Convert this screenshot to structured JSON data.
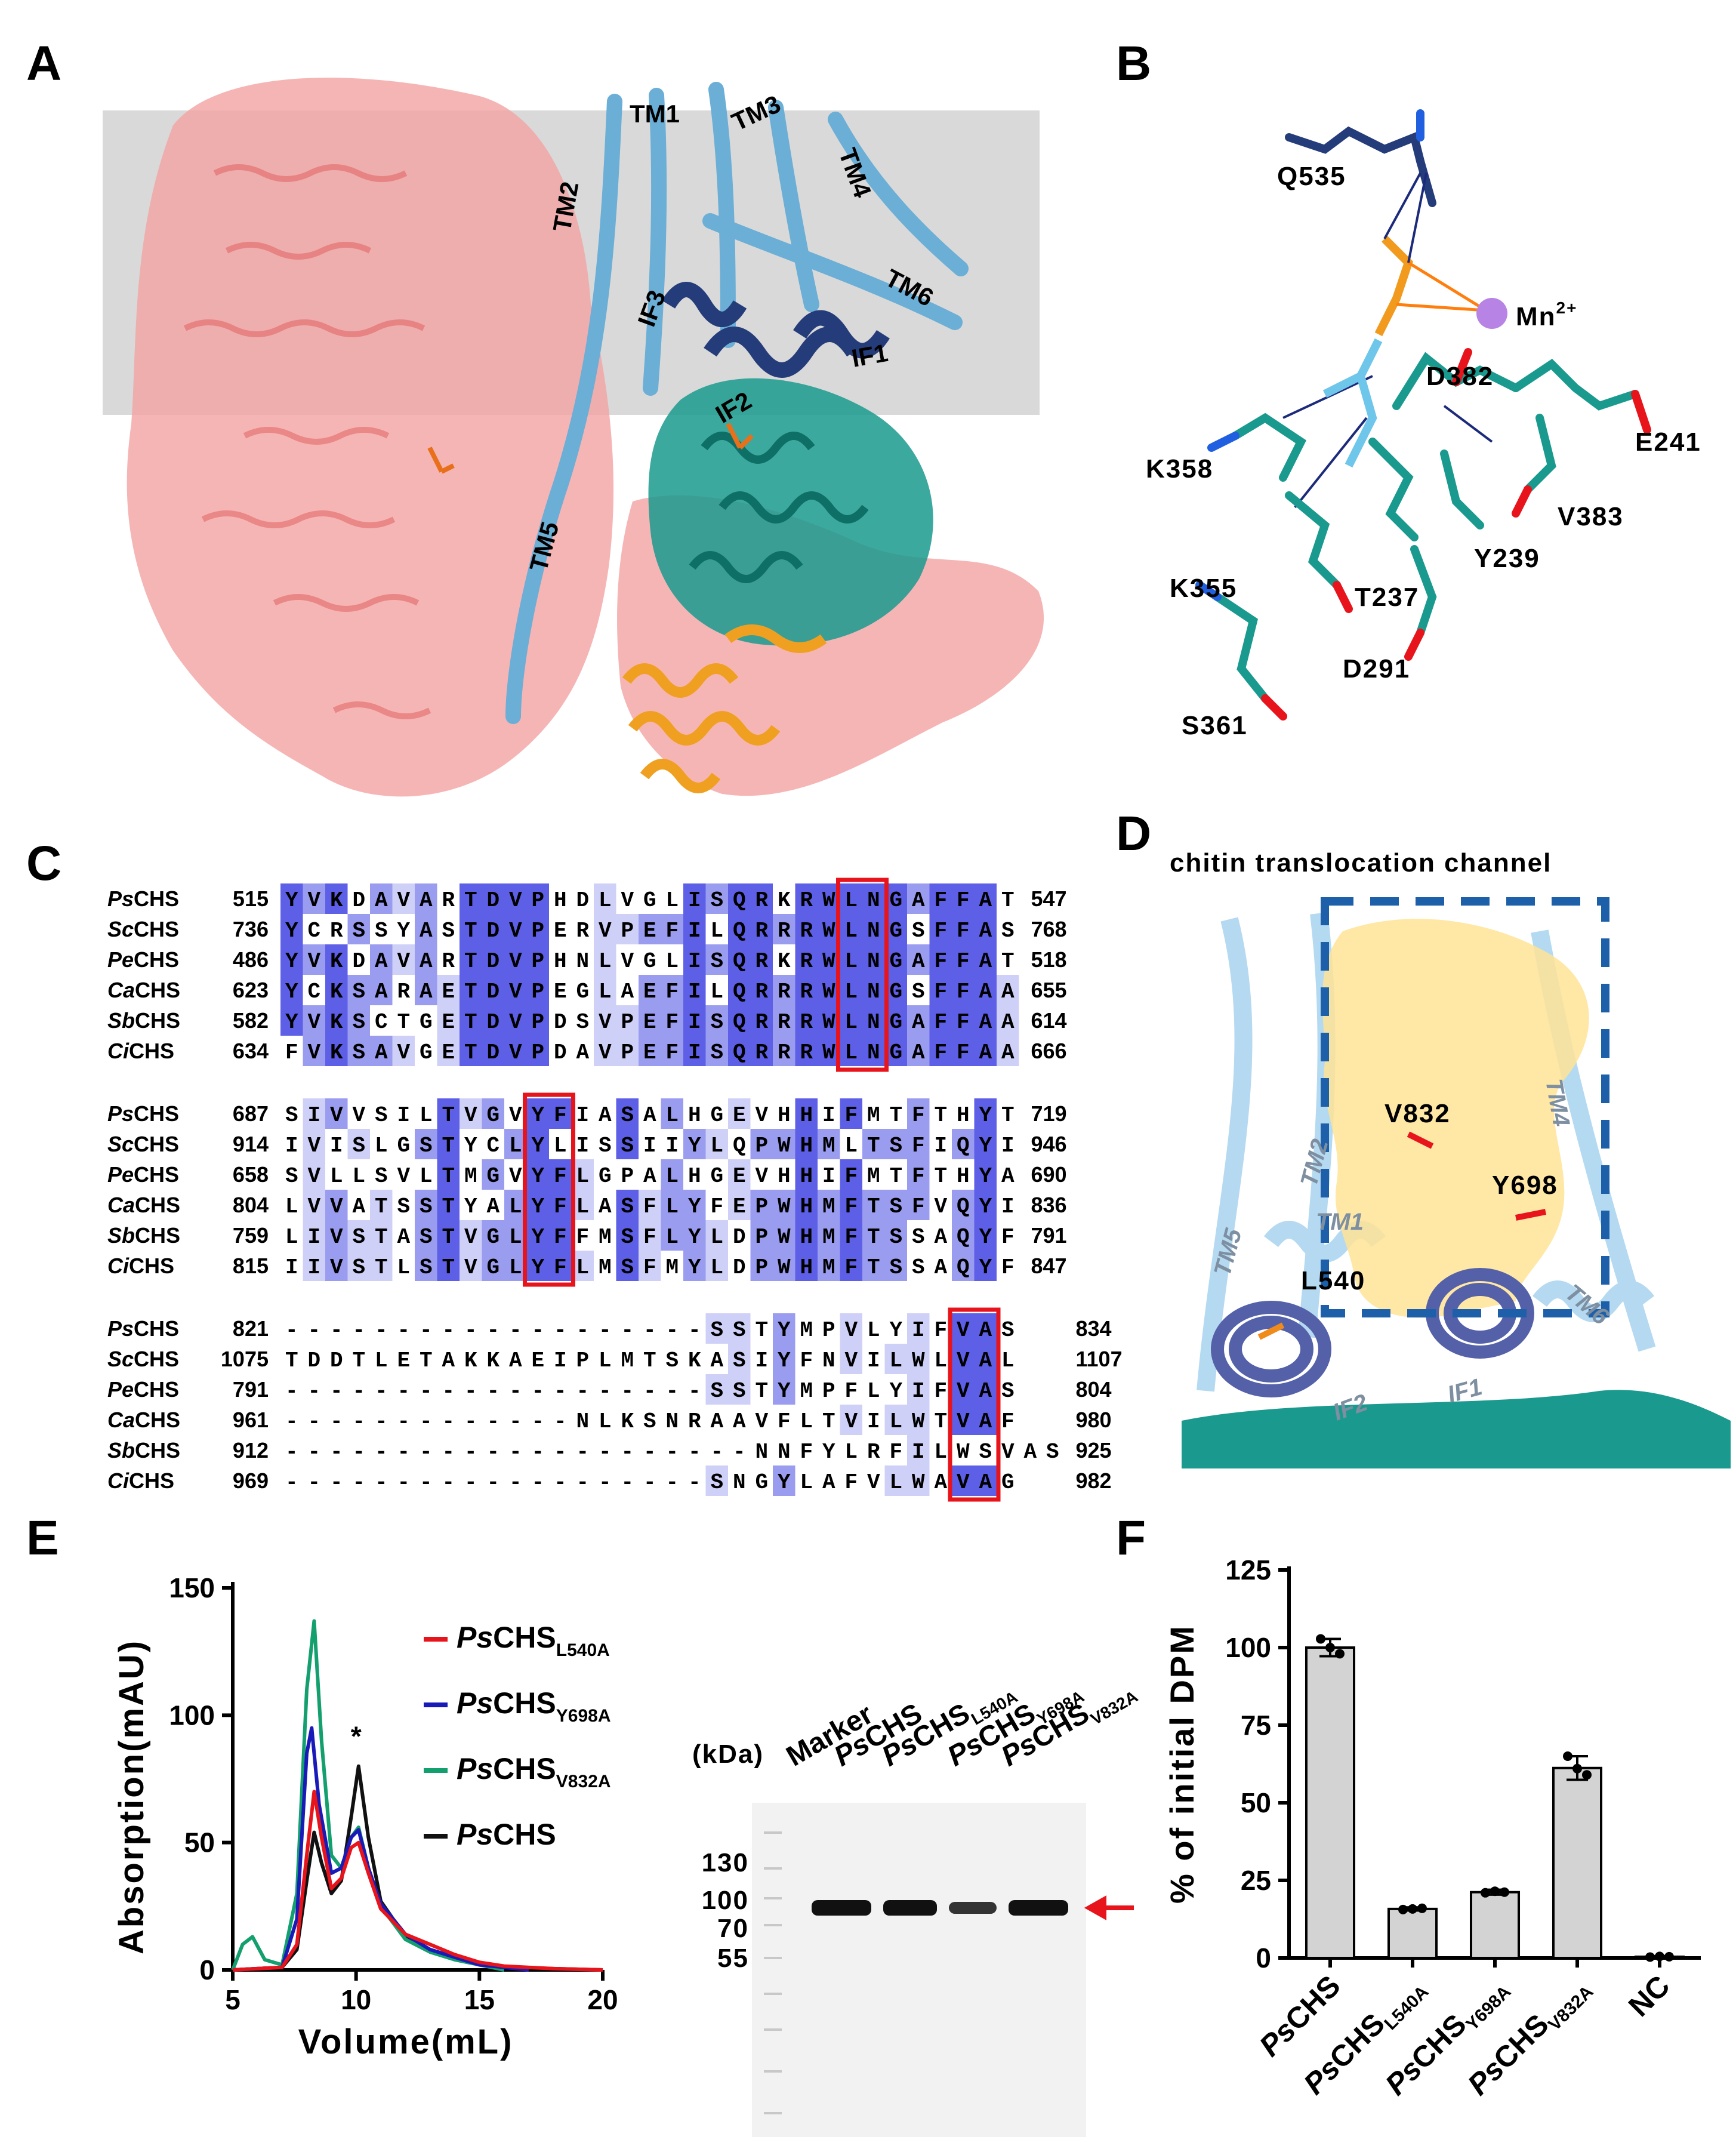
{
  "panels": {
    "A": {
      "letter": "A",
      "tm_labels": [
        "TM1",
        "TM2",
        "TM3",
        "TM4",
        "TM5",
        "TM6"
      ],
      "if_labels": [
        "IF1",
        "IF2",
        "IF3"
      ],
      "colors": {
        "membrane": "#d9d9d9",
        "protomer2": "#f4a3a3",
        "tm": "#6baed6",
        "if": "#253c7a",
        "catalytic": "#1a9a8e",
        "orange": "#f0a020"
      }
    },
    "B": {
      "letter": "B",
      "residues": [
        "Q535",
        "D382",
        "E241",
        "K358",
        "V383",
        "Y239",
        "K355",
        "T237",
        "D291",
        "S361"
      ],
      "ion_label": "Mn",
      "ion_charge": "2+"
    },
    "C": {
      "letter": "C",
      "blocks": [
        {
          "rows": [
            {
              "species": "Ps",
              "suffix": "CHS",
              "start": "515",
              "seq": "YVKDAVARTDVPHDLVGLISQRKRWLNGAFFAT",
              "end": "547"
            },
            {
              "species": "Sc",
              "suffix": "CHS",
              "start": "736",
              "seq": "YCRSSYASTDVPERVPEFILQRRRWLNGSFFAS",
              "end": "768"
            },
            {
              "species": "Pe",
              "suffix": "CHS",
              "start": "486",
              "seq": "YVKDAVARTDVPHNLVGLISQRKRWLNGAFFAT",
              "end": "518"
            },
            {
              "species": "Ca",
              "suffix": "CHS",
              "start": "623",
              "seq": "YCKSARAETDVPEGLAEFILQRRRWLNGSFFAA",
              "end": "655"
            },
            {
              "species": "Sb",
              "suffix": "CHS",
              "start": "582",
              "seq": "YVKSCTGETDVPDSVPEFISQRRRWLNGAFFAA",
              "end": "614"
            },
            {
              "species": "Ci",
              "suffix": "CHS",
              "start": "634",
              "seq": "FVKSAVGETDVPDAVPEFISQRRRWLNGAFFAA",
              "end": "666"
            }
          ],
          "highlight_col": 25
        },
        {
          "rows": [
            {
              "species": "Ps",
              "suffix": "CHS",
              "start": "687",
              "seq": "SIVVSILTVGVYFIASALHGEVHHIFMTFTHYT",
              "end": "719"
            },
            {
              "species": "Sc",
              "suffix": "CHS",
              "start": "914",
              "seq": "IVISLGSTYCLYLISSIIYLQPWHMLTSFIQYI",
              "end": "946"
            },
            {
              "species": "Pe",
              "suffix": "CHS",
              "start": "658",
              "seq": "SVLLSVLTMGVYFLGPALHGEVHHIFMTFTHYA",
              "end": "690"
            },
            {
              "species": "Ca",
              "suffix": "CHS",
              "start": "804",
              "seq": "LVVATSSTYALYFLASFLYFEPWHMFTSFVQYI",
              "end": "836"
            },
            {
              "species": "Sb",
              "suffix": "CHS",
              "start": "759",
              "seq": "LIVSTASTVGLYFFMSFLYLDPWHMFTSSAQYF",
              "end": "791"
            },
            {
              "species": "Ci",
              "suffix": "CHS",
              "start": "815",
              "seq": "IIVSTLSTVGLYFLMSFMYLDPWHMFTSSAQYF",
              "end": "847"
            }
          ],
          "highlight_col": 11
        },
        {
          "rows": [
            {
              "species": "Ps",
              "suffix": "CHS",
              "start": "821",
              "seq": "-------------------SSTYMPVLYIFVAS",
              "end": "834"
            },
            {
              "species": "Sc",
              "suffix": "CHS",
              "start": "1075",
              "seq": "TDDTLETAKKAEIPLMTSKASIYFNVILWLVAL",
              "end": "1107"
            },
            {
              "species": "Pe",
              "suffix": "CHS",
              "start": "791",
              "seq": "-------------------SSTYMPFLYIFVAS",
              "end": "804"
            },
            {
              "species": "Ca",
              "suffix": "CHS",
              "start": "961",
              "seq": "-------------NLKSNRAAVFLTVILWTVAF",
              "end": "980"
            },
            {
              "species": "Sb",
              "suffix": "CHS",
              "start": "912",
              "seq": "---------------------NNFYLRFILWSVAS",
              "end": "925"
            },
            {
              "species": "Ci",
              "suffix": "CHS",
              "start": "969",
              "seq": "-------------------SNGYLAFVLWAVAG",
              "end": "982"
            }
          ],
          "highlight_col": 30
        }
      ]
    },
    "D": {
      "letter": "D",
      "title": "chitin translocation channel",
      "residues": [
        "V832",
        "Y698",
        "L540"
      ],
      "helix_labels": [
        "TM4",
        "TM2",
        "TM5",
        "TM1",
        "TM6",
        "IF2",
        "IF1"
      ]
    },
    "E": {
      "letter": "E",
      "chart_data": {
        "type": "line",
        "xlabel": "Volume(mL)",
        "ylabel": "Absorption(mAU)",
        "xlim": [
          5,
          20
        ],
        "ylim": [
          0,
          150
        ],
        "xticks": [
          "5",
          "10",
          "15",
          "20"
        ],
        "yticks": [
          "0",
          "50",
          "100",
          "150"
        ],
        "annotation": "*",
        "series": [
          {
            "name": "PsCHS",
            "sub": "L540A",
            "color": "#e8141c",
            "x": [
              5,
              6,
              7,
              7.6,
              8.0,
              8.3,
              8.6,
              9.0,
              9.4,
              9.8,
              10.1,
              10.5,
              11,
              12,
              13,
              14,
              15,
              16,
              18,
              20
            ],
            "y": [
              0,
              0.5,
              1,
              10,
              45,
              70,
              52,
              32,
              36,
              48,
              50,
              38,
              24,
              14,
              10,
              6,
              3,
              1.5,
              0.5,
              0
            ]
          },
          {
            "name": "PsCHS",
            "sub": "Y698A",
            "color": "#1a1ab8",
            "x": [
              5,
              6,
              7,
              7.6,
              8.0,
              8.2,
              8.5,
              9.0,
              9.4,
              9.8,
              10.1,
              10.5,
              11,
              12,
              13,
              14,
              15,
              16,
              17
            ],
            "y": [
              0,
              0.5,
              1,
              20,
              85,
              95,
              65,
              38,
              40,
              52,
              55,
              40,
              26,
              14,
              8,
              5,
              2,
              1,
              0
            ]
          },
          {
            "name": "PsCHS",
            "sub": "V832A",
            "color": "#14a06e",
            "x": [
              5,
              5.4,
              5.8,
              6.3,
              7,
              7.6,
              8.0,
              8.3,
              8.6,
              9.0,
              9.4,
              9.8,
              10.1,
              10.5,
              11,
              12,
              13,
              14,
              15,
              16
            ],
            "y": [
              0,
              10,
              13,
              4,
              2,
              30,
              110,
              137,
              90,
              45,
              40,
              52,
              56,
              40,
              25,
              12,
              7,
              4,
              2,
              0
            ]
          },
          {
            "name": "PsCHS",
            "sub": "",
            "color": "#111111",
            "x": [
              5,
              6,
              7,
              7.6,
              8.0,
              8.3,
              8.6,
              9.0,
              9.4,
              9.8,
              10.1,
              10.5,
              11,
              12,
              13,
              14,
              15,
              16,
              18,
              20
            ],
            "y": [
              0,
              0.5,
              1,
              8,
              35,
              54,
              42,
              30,
              35,
              60,
              80,
              52,
              27,
              13,
              8,
              5,
              2,
              1,
              0.5,
              0
            ]
          }
        ]
      },
      "gel": {
        "kda_label": "(kDa)",
        "lane_labels": [
          {
            "main": "Marker",
            "sub": ""
          },
          {
            "main": "PsCHS",
            "sub": ""
          },
          {
            "main": "PsCHS",
            "sub": "L540A"
          },
          {
            "main": "PsCHS",
            "sub": "Y698A"
          },
          {
            "main": "PsCHS",
            "sub": "V832A"
          }
        ],
        "markers": [
          "130",
          "100",
          "70",
          "55"
        ]
      }
    },
    "F": {
      "letter": "F",
      "chart_data": {
        "type": "bar",
        "ylabel": "% of initial DPM",
        "ylim": [
          0,
          125
        ],
        "yticks": [
          "0",
          "25",
          "50",
          "75",
          "100",
          "125"
        ],
        "categories": [
          {
            "main": "PsCHS",
            "sub": ""
          },
          {
            "main": "PsCHS",
            "sub": "L540A"
          },
          {
            "main": "PsCHS",
            "sub": "Y698A"
          },
          {
            "main": "PsCHS",
            "sub": "V832A"
          },
          {
            "main": "NC",
            "sub": ""
          }
        ],
        "values": [
          100,
          15.8,
          21.2,
          61.2,
          0.4
        ],
        "errors": [
          2.8,
          0.5,
          0.8,
          3.8,
          0.2
        ],
        "points": [
          [
            102.8,
            100,
            98
          ],
          [
            15.6,
            15.8,
            16.0
          ],
          [
            21.0,
            21.5,
            21.2
          ],
          [
            65,
            61,
            59
          ],
          [
            0.3,
            0.5,
            0.4
          ]
        ],
        "bar_color": "#d3d3d3"
      }
    }
  }
}
